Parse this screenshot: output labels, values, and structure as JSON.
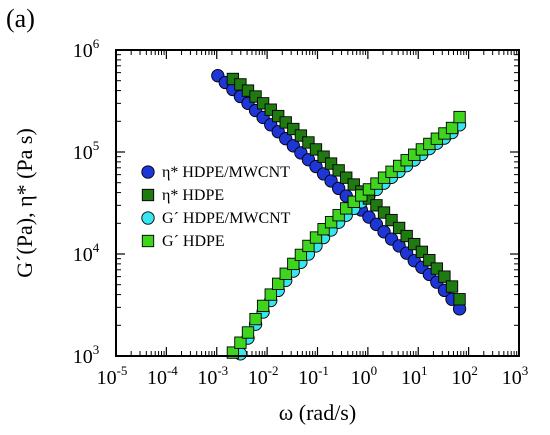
{
  "panel_label": "(a)",
  "colors": {
    "eta_composite": "#1e36d6",
    "eta_hdpe": "#1f7a12",
    "g_composite": "#38e6f0",
    "g_hdpe": "#3fd41e",
    "edge": "#000000"
  },
  "chart_data": {
    "type": "scatter",
    "x_scale": "log",
    "y_scale": "log",
    "xlim": [
      1e-05,
      1000
    ],
    "ylim": [
      1000,
      1000000
    ],
    "xlabel": "ω (rad/s)",
    "ylabel": "G´(Pa), η* (Pa s)",
    "x_ticks": [
      {
        "base": "10",
        "exp": "-5"
      },
      {
        "base": "10",
        "exp": "-4"
      },
      {
        "base": "10",
        "exp": "-3"
      },
      {
        "base": "10",
        "exp": "-2"
      },
      {
        "base": "10",
        "exp": "-1"
      },
      {
        "base": "10",
        "exp": "0"
      },
      {
        "base": "10",
        "exp": "1"
      },
      {
        "base": "10",
        "exp": "2"
      },
      {
        "base": "10",
        "exp": "3"
      }
    ],
    "y_ticks": [
      {
        "base": "10",
        "exp": "3"
      },
      {
        "base": "10",
        "exp": "4"
      },
      {
        "base": "10",
        "exp": "5"
      },
      {
        "base": "10",
        "exp": "6"
      }
    ],
    "grid": false,
    "legend_position": "center-left",
    "series": [
      {
        "name": "η* HDPE/MWCNT",
        "marker": "circle",
        "color": "#1e36d6",
        "points": [
          [
            0.00105,
            560000
          ],
          [
            0.00148,
            480000
          ],
          [
            0.00209,
            410000
          ],
          [
            0.00295,
            350000
          ],
          [
            0.00417,
            300000
          ],
          [
            0.00589,
            255000
          ],
          [
            0.00832,
            218000
          ],
          [
            0.0118,
            185000
          ],
          [
            0.0166,
            158000
          ],
          [
            0.0234,
            135000
          ],
          [
            0.0331,
            115000
          ],
          [
            0.0468,
            98000
          ],
          [
            0.0661,
            84000
          ],
          [
            0.0933,
            72000
          ],
          [
            0.132,
            61000
          ],
          [
            0.186,
            52000
          ],
          [
            0.263,
            44000
          ],
          [
            0.372,
            37000
          ],
          [
            0.525,
            31500
          ],
          [
            0.741,
            27000
          ],
          [
            1.05,
            23000
          ],
          [
            1.48,
            19500
          ],
          [
            2.09,
            16500
          ],
          [
            2.95,
            14000
          ],
          [
            4.17,
            12000
          ],
          [
            5.89,
            10200
          ],
          [
            8.32,
            8600
          ],
          [
            11.8,
            7400
          ],
          [
            16.6,
            6300
          ],
          [
            23.4,
            5300
          ],
          [
            33.1,
            4400
          ],
          [
            46.8,
            3600
          ],
          [
            66.1,
            2900
          ]
        ]
      },
      {
        "name": "η* HDPE",
        "marker": "square",
        "color": "#1f7a12",
        "points": [
          [
            0.00209,
            520000
          ],
          [
            0.00295,
            460000
          ],
          [
            0.00417,
            400000
          ],
          [
            0.00589,
            350000
          ],
          [
            0.00832,
            300000
          ],
          [
            0.0118,
            260000
          ],
          [
            0.0166,
            225000
          ],
          [
            0.0234,
            195000
          ],
          [
            0.0331,
            168000
          ],
          [
            0.0468,
            145000
          ],
          [
            0.0661,
            124000
          ],
          [
            0.0933,
            106000
          ],
          [
            0.132,
            90000
          ],
          [
            0.186,
            77000
          ],
          [
            0.263,
            66000
          ],
          [
            0.372,
            56000
          ],
          [
            0.525,
            48000
          ],
          [
            0.741,
            41000
          ],
          [
            1.05,
            35000
          ],
          [
            1.48,
            30000
          ],
          [
            2.09,
            25500
          ],
          [
            2.95,
            21500
          ],
          [
            4.17,
            18000
          ],
          [
            5.89,
            15000
          ],
          [
            8.32,
            12500
          ],
          [
            11.8,
            10500
          ],
          [
            16.6,
            8700
          ],
          [
            23.4,
            7200
          ],
          [
            33.1,
            6000
          ],
          [
            46.8,
            4800
          ],
          [
            66.1,
            3600
          ]
        ]
      },
      {
        "name": "G´ HDPE/MWCNT",
        "marker": "circle",
        "color": "#38e6f0",
        "points": [
          [
            0.00295,
            1050
          ],
          [
            0.00417,
            1500
          ],
          [
            0.00589,
            2050
          ],
          [
            0.00832,
            2700
          ],
          [
            0.0118,
            3500
          ],
          [
            0.0166,
            4400
          ],
          [
            0.0234,
            5500
          ],
          [
            0.0331,
            6800
          ],
          [
            0.0468,
            8300
          ],
          [
            0.0661,
            10000
          ],
          [
            0.0933,
            12000
          ],
          [
            0.132,
            14500
          ],
          [
            0.186,
            17200
          ],
          [
            0.263,
            20500
          ],
          [
            0.372,
            24000
          ],
          [
            0.525,
            28000
          ],
          [
            0.741,
            32500
          ],
          [
            1.05,
            37500
          ],
          [
            1.48,
            43000
          ],
          [
            2.09,
            49500
          ],
          [
            2.95,
            56500
          ],
          [
            4.17,
            64500
          ],
          [
            5.89,
            73500
          ],
          [
            8.32,
            83500
          ],
          [
            11.8,
            95000
          ],
          [
            16.6,
            108000
          ],
          [
            23.4,
            122000
          ],
          [
            33.1,
            137000
          ],
          [
            46.8,
            155000
          ],
          [
            66.1,
            185000
          ]
        ]
      },
      {
        "name": "G´ HDPE",
        "marker": "square",
        "color": "#3fd41e",
        "points": [
          [
            0.00209,
            1080
          ],
          [
            0.00295,
            1350
          ],
          [
            0.00417,
            1700
          ],
          [
            0.00589,
            2300
          ],
          [
            0.00832,
            3100
          ],
          [
            0.0118,
            4000
          ],
          [
            0.0166,
            5100
          ],
          [
            0.0234,
            6400
          ],
          [
            0.0331,
            8000
          ],
          [
            0.0468,
            9800
          ],
          [
            0.0661,
            12000
          ],
          [
            0.0933,
            14500
          ],
          [
            0.132,
            17500
          ],
          [
            0.186,
            20500
          ],
          [
            0.263,
            24000
          ],
          [
            0.372,
            28000
          ],
          [
            0.525,
            32500
          ],
          [
            0.741,
            37500
          ],
          [
            1.05,
            43000
          ],
          [
            1.48,
            49000
          ],
          [
            2.09,
            56000
          ],
          [
            2.95,
            64000
          ],
          [
            4.17,
            73000
          ],
          [
            5.89,
            83000
          ],
          [
            8.32,
            94000
          ],
          [
            11.8,
            106000
          ],
          [
            16.6,
            120000
          ],
          [
            23.4,
            135000
          ],
          [
            33.1,
            152000
          ],
          [
            46.8,
            172000
          ],
          [
            66.1,
            220000
          ]
        ]
      }
    ]
  }
}
